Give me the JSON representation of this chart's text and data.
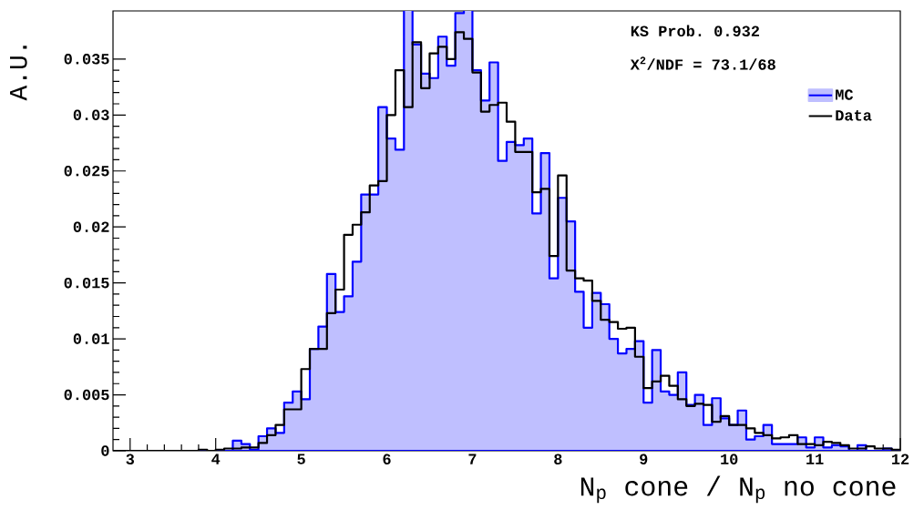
{
  "chart_data": {
    "type": "histogram",
    "xlabel": "N$_{p}$ cone / N$_{p}$ no cone",
    "ylabel": "A.U.",
    "annotations": [
      "KS Prob. 0.932",
      "X$^{2}$/NDF = 73.1/68"
    ],
    "bins": [
      2.8,
      2.9,
      3.0,
      3.1,
      3.2,
      3.3,
      3.4,
      3.5,
      3.6,
      3.7,
      3.8,
      3.9,
      4.0,
      4.1,
      4.2,
      4.3,
      4.4,
      4.5,
      4.6,
      4.7,
      4.8,
      4.9,
      5.0,
      5.1,
      5.2,
      5.3,
      5.4,
      5.5,
      5.6,
      5.7,
      5.8,
      5.9,
      6.0,
      6.1,
      6.2,
      6.3,
      6.4,
      6.5,
      6.6,
      6.7,
      6.8,
      6.9,
      7.0,
      7.1,
      7.2,
      7.3,
      7.4,
      7.5,
      7.6,
      7.7,
      7.8,
      7.9,
      8.0,
      8.1,
      8.2,
      8.3,
      8.4,
      8.5,
      8.6,
      8.7,
      8.8,
      8.9,
      9.0,
      9.1,
      9.2,
      9.3,
      9.4,
      9.5,
      9.6,
      9.7,
      9.8,
      9.9,
      10.0,
      10.1,
      10.2,
      10.3,
      10.4,
      10.5,
      10.6,
      10.7,
      10.8,
      10.9,
      11.0,
      11.1,
      11.2,
      11.3,
      11.4,
      11.5,
      11.6,
      11.7,
      11.8,
      11.9,
      12.0
    ],
    "series": [
      {
        "name": "MC",
        "color": "#0000ff",
        "values": [
          0,
          0,
          0,
          0,
          0,
          0,
          0,
          0,
          0,
          0,
          0,
          0,
          0,
          0,
          0.0009,
          0.0006,
          0.0001,
          0.0013,
          0.002,
          0.0016,
          0.0043,
          0.0053,
          0.0046,
          0.0091,
          0.0111,
          0.0158,
          0.0124,
          0.0138,
          0.0169,
          0.0229,
          0.0229,
          0.0307,
          0.0279,
          0.0269,
          null,
          0.0363,
          0.0337,
          0.0333,
          0.037,
          0.0344,
          0.0391,
          null,
          0.034,
          0.0313,
          0.0347,
          0.0259,
          0.0276,
          0.0273,
          0.0279,
          0.0212,
          0.0266,
          0.0154,
          0.0226,
          0.0205,
          0.0142,
          0.011,
          0.0141,
          0.0131,
          0.01,
          0.0087,
          0.0091,
          0.0098,
          0.0043,
          0.009,
          0.0053,
          0.005,
          0.007,
          0.0041,
          0.005,
          0.0023,
          0.0047,
          0.0029,
          0.0023,
          0.0036,
          0.001,
          0.0013,
          0.0023,
          0.0006,
          0.0006,
          0.0006,
          0.0012,
          0.0003,
          0.0012,
          0.0003,
          0.0005,
          0.0004,
          0,
          0.0005,
          0,
          0,
          0.0002,
          0
        ]
      },
      {
        "name": "Data",
        "color": "#000000",
        "values": [
          0,
          0,
          0,
          0,
          0,
          0,
          0,
          0,
          0,
          0,
          0.0001,
          0,
          0.0001,
          0.0002,
          0.0002,
          0.0003,
          0.0003,
          0.0007,
          0.0014,
          0.0023,
          0.0037,
          0.0037,
          0.0073,
          0.0091,
          0.0091,
          0.0123,
          0.0144,
          0.0193,
          0.0202,
          0.0213,
          0.0237,
          0.0241,
          0.03,
          0.034,
          0.0307,
          0.0365,
          0.0324,
          0.0355,
          0.0361,
          0.035,
          0.0374,
          0.0368,
          0.0338,
          0.0303,
          0.0309,
          0.0311,
          0.0294,
          0.0267,
          0.0267,
          0.0231,
          0.0234,
          0.0174,
          0.0246,
          0.0161,
          0.0154,
          0.0152,
          0.0134,
          0.0117,
          0.0115,
          0.0109,
          0.011,
          0.0084,
          0.0056,
          0.0062,
          0.0067,
          0.0058,
          0.0046,
          0.004,
          0.0042,
          0.0041,
          0.0026,
          0.0031,
          0.0023,
          0.0023,
          0.002,
          0.0016,
          0.0014,
          0.0011,
          0.0012,
          0.0014,
          0.0006,
          0.0006,
          0.0005,
          0.0008,
          0.0007,
          0.0005,
          0.0002,
          0.0002,
          0.0004,
          0.0002,
          0.0002,
          0.0001
        ]
      }
    ],
    "xlim": [
      2.8,
      12
    ],
    "xticks": [
      3,
      4,
      5,
      6,
      7,
      8,
      9,
      10,
      11,
      12
    ],
    "ylim": [
      0,
      0.0393
    ],
    "yticks": [
      0,
      0.005,
      0.01,
      0.015,
      0.02,
      0.025,
      0.03,
      0.035
    ],
    "legend": "top right",
    "grid": false
  }
}
